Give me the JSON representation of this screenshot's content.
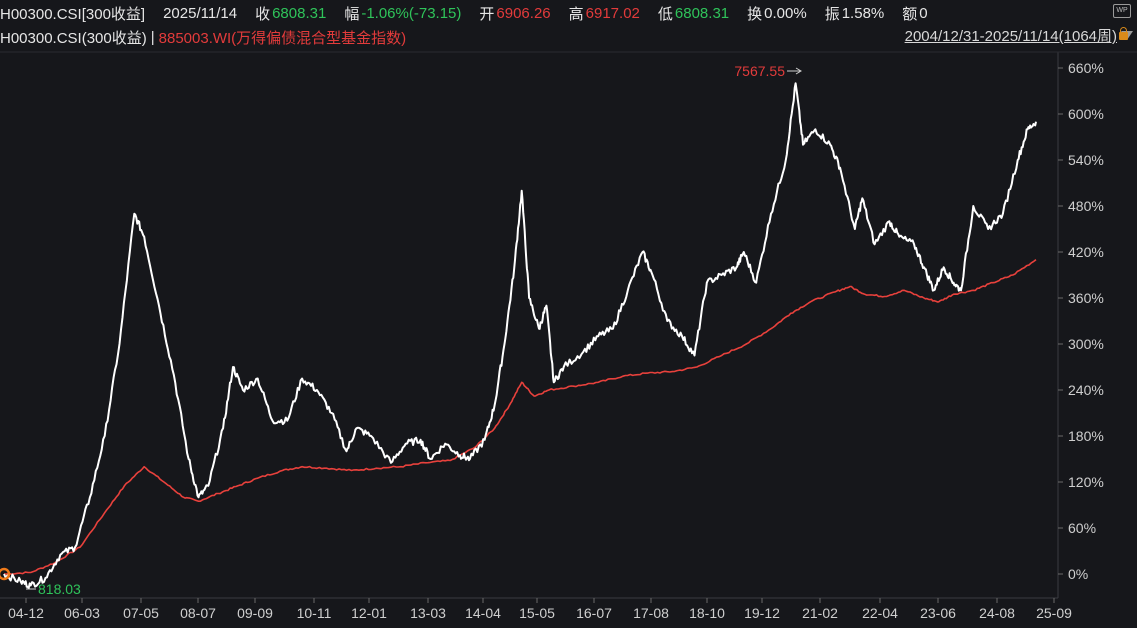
{
  "quote": {
    "code": "H00300.CSI[300收益]",
    "date": "2025/11/14",
    "close_label": "收",
    "close_value": "6808.31",
    "change_label": "幅",
    "change_value": "-1.06%(-73.15)",
    "open_label": "开",
    "open_value": "6906.26",
    "high_label": "高",
    "high_value": "6917.02",
    "low_label": "低",
    "low_value": "6808.31",
    "turnover_label": "换",
    "turnover_value": "0.00%",
    "amplitude_label": "振",
    "amplitude_value": "1.58%",
    "amount_label": "额",
    "amount_value": "0"
  },
  "legend": {
    "series1": "H00300.CSI(300收益)",
    "separator": "|",
    "series2": "885003.WI(万得偏债混合型基金指数)",
    "range": "2004/12/31-2025/11/14(1064周)"
  },
  "icons": {
    "top_right": "wp-icon",
    "lock": "lock-icon",
    "range_dropdown": "triangle-down-icon"
  },
  "colors": {
    "series1": "#ffffff",
    "series2": "#e8413c",
    "background": "#16171b",
    "up": "#e23b3b",
    "down": "#2fc35a"
  },
  "chart_data": {
    "type": "line",
    "x_tick_labels": [
      "04-12",
      "06-03",
      "07-05",
      "08-07",
      "09-09",
      "10-11",
      "12-01",
      "13-03",
      "14-04",
      "15-05",
      "16-07",
      "17-08",
      "18-10",
      "19-12",
      "21-02",
      "22-04",
      "23-06",
      "24-08",
      "25-09"
    ],
    "y_tick_labels": [
      "0%",
      "60%",
      "120%",
      "180%",
      "240%",
      "300%",
      "360%",
      "420%",
      "480%",
      "540%",
      "600%",
      "660%"
    ],
    "ylim": [
      -30,
      690
    ],
    "annotations": {
      "max_label": "7567.55",
      "min_label": "818.03"
    },
    "series": [
      {
        "name": "H00300.CSI(300收益)",
        "color": "#ffffff",
        "points": [
          [
            2004.96,
            0
          ],
          [
            2005.3,
            -10
          ],
          [
            2005.5,
            -15
          ],
          [
            2005.8,
            -5
          ],
          [
            2006.1,
            25
          ],
          [
            2006.4,
            35
          ],
          [
            2006.7,
            100
          ],
          [
            2007.0,
            180
          ],
          [
            2007.3,
            300
          ],
          [
            2007.6,
            470
          ],
          [
            2007.8,
            440
          ],
          [
            2008.1,
            350
          ],
          [
            2008.4,
            260
          ],
          [
            2008.7,
            150
          ],
          [
            2008.9,
            100
          ],
          [
            2009.1,
            115
          ],
          [
            2009.4,
            190
          ],
          [
            2009.6,
            270
          ],
          [
            2009.8,
            240
          ],
          [
            2010.1,
            255
          ],
          [
            2010.4,
            200
          ],
          [
            2010.7,
            200
          ],
          [
            2011.0,
            255
          ],
          [
            2011.3,
            240
          ],
          [
            2011.6,
            210
          ],
          [
            2011.9,
            160
          ],
          [
            2012.1,
            190
          ],
          [
            2012.4,
            180
          ],
          [
            2012.8,
            145
          ],
          [
            2013.1,
            170
          ],
          [
            2013.4,
            175
          ],
          [
            2013.6,
            150
          ],
          [
            2013.9,
            170
          ],
          [
            2014.2,
            155
          ],
          [
            2014.4,
            150
          ],
          [
            2014.7,
            175
          ],
          [
            2014.9,
            220
          ],
          [
            2015.1,
            300
          ],
          [
            2015.3,
            400
          ],
          [
            2015.45,
            500
          ],
          [
            2015.6,
            360
          ],
          [
            2015.8,
            320
          ],
          [
            2015.95,
            350
          ],
          [
            2016.1,
            250
          ],
          [
            2016.3,
            270
          ],
          [
            2016.7,
            290
          ],
          [
            2017.0,
            310
          ],
          [
            2017.3,
            320
          ],
          [
            2017.6,
            370
          ],
          [
            2017.9,
            420
          ],
          [
            2018.1,
            390
          ],
          [
            2018.4,
            330
          ],
          [
            2018.7,
            310
          ],
          [
            2018.95,
            285
          ],
          [
            2019.2,
            380
          ],
          [
            2019.5,
            390
          ],
          [
            2019.8,
            400
          ],
          [
            2019.95,
            420
          ],
          [
            2020.2,
            380
          ],
          [
            2020.5,
            470
          ],
          [
            2020.8,
            540
          ],
          [
            2021.0,
            640
          ],
          [
            2021.15,
            560
          ],
          [
            2021.4,
            580
          ],
          [
            2021.7,
            560
          ],
          [
            2021.9,
            530
          ],
          [
            2022.2,
            450
          ],
          [
            2022.35,
            490
          ],
          [
            2022.6,
            430
          ],
          [
            2022.9,
            460
          ],
          [
            2023.1,
            440
          ],
          [
            2023.4,
            430
          ],
          [
            2023.6,
            400
          ],
          [
            2023.8,
            370
          ],
          [
            2024.0,
            400
          ],
          [
            2024.2,
            380
          ],
          [
            2024.35,
            370
          ],
          [
            2024.6,
            480
          ],
          [
            2024.9,
            450
          ],
          [
            2025.2,
            470
          ],
          [
            2025.5,
            540
          ],
          [
            2025.7,
            580
          ],
          [
            2025.87,
            590
          ]
        ]
      },
      {
        "name": "885003.WI(万得偏债混合型基金指数)",
        "color": "#e8413c",
        "points": [
          [
            2004.96,
            0
          ],
          [
            2005.5,
            2
          ],
          [
            2006.0,
            15
          ],
          [
            2006.5,
            35
          ],
          [
            2007.0,
            80
          ],
          [
            2007.4,
            115
          ],
          [
            2007.8,
            140
          ],
          [
            2008.2,
            120
          ],
          [
            2008.6,
            100
          ],
          [
            2008.9,
            95
          ],
          [
            2009.3,
            105
          ],
          [
            2009.7,
            115
          ],
          [
            2010.1,
            125
          ],
          [
            2010.6,
            135
          ],
          [
            2011.0,
            140
          ],
          [
            2011.5,
            138
          ],
          [
            2012.0,
            135
          ],
          [
            2012.5,
            138
          ],
          [
            2013.0,
            140
          ],
          [
            2013.5,
            145
          ],
          [
            2014.0,
            148
          ],
          [
            2014.5,
            165
          ],
          [
            2014.9,
            190
          ],
          [
            2015.2,
            220
          ],
          [
            2015.45,
            250
          ],
          [
            2015.7,
            232
          ],
          [
            2016.0,
            240
          ],
          [
            2016.5,
            245
          ],
          [
            2017.0,
            250
          ],
          [
            2017.5,
            258
          ],
          [
            2018.0,
            262
          ],
          [
            2018.5,
            264
          ],
          [
            2019.0,
            270
          ],
          [
            2019.5,
            285
          ],
          [
            2020.0,
            300
          ],
          [
            2020.5,
            320
          ],
          [
            2020.9,
            340
          ],
          [
            2021.3,
            355
          ],
          [
            2021.8,
            368
          ],
          [
            2022.1,
            375
          ],
          [
            2022.4,
            365
          ],
          [
            2022.8,
            362
          ],
          [
            2023.2,
            370
          ],
          [
            2023.6,
            360
          ],
          [
            2023.9,
            355
          ],
          [
            2024.2,
            365
          ],
          [
            2024.6,
            370
          ],
          [
            2025.0,
            380
          ],
          [
            2025.4,
            390
          ],
          [
            2025.87,
            410
          ]
        ]
      }
    ]
  }
}
